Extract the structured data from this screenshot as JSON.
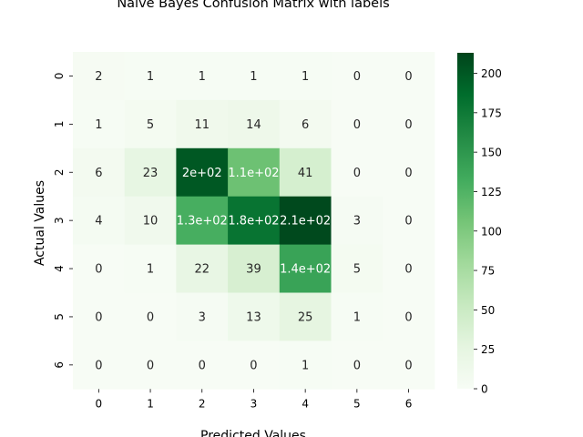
{
  "chart_data": {
    "type": "heatmap",
    "title": "Naive Bayes Confusion Matrix with labels",
    "xlabel": "Predicted Values",
    "ylabel": "Actual Values",
    "x_categories": [
      "0",
      "1",
      "2",
      "3",
      "4",
      "5",
      "6"
    ],
    "y_categories": [
      "0",
      "1",
      "2",
      "3",
      "4",
      "5",
      "6"
    ],
    "values": [
      [
        2,
        1,
        1,
        1,
        1,
        0,
        0
      ],
      [
        1,
        5,
        11,
        14,
        6,
        0,
        0
      ],
      [
        6,
        23,
        200,
        110,
        41,
        0,
        0
      ],
      [
        4,
        10,
        130,
        180,
        210,
        3,
        0
      ],
      [
        0,
        1,
        22,
        39,
        140,
        5,
        0
      ],
      [
        0,
        0,
        3,
        13,
        25,
        1,
        0
      ],
      [
        0,
        0,
        0,
        0,
        1,
        0,
        0
      ]
    ],
    "cell_labels": [
      [
        "2",
        "1",
        "1",
        "1",
        "1",
        "0",
        "0"
      ],
      [
        "1",
        "5",
        "11",
        "14",
        "6",
        "0",
        "0"
      ],
      [
        "6",
        "23",
        "2e+02",
        "1.1e+02",
        "41",
        "0",
        "0"
      ],
      [
        "4",
        "10",
        "1.3e+02",
        "1.8e+02",
        "2.1e+02",
        "3",
        "0"
      ],
      [
        "0",
        "1",
        "22",
        "39",
        "1.4e+02",
        "5",
        "0"
      ],
      [
        "0",
        "0",
        "3",
        "13",
        "25",
        "1",
        "0"
      ],
      [
        "0",
        "0",
        "0",
        "0",
        "1",
        "0",
        "0"
      ]
    ],
    "colormap": "Greens",
    "vmin": 0,
    "vmax": 213,
    "colorbar_ticks": [
      0,
      25,
      50,
      75,
      100,
      125,
      150,
      175,
      200
    ],
    "colorbar_tick_labels": [
      "0",
      "25",
      "50",
      "75",
      "100",
      "125",
      "150",
      "175",
      "200"
    ]
  }
}
